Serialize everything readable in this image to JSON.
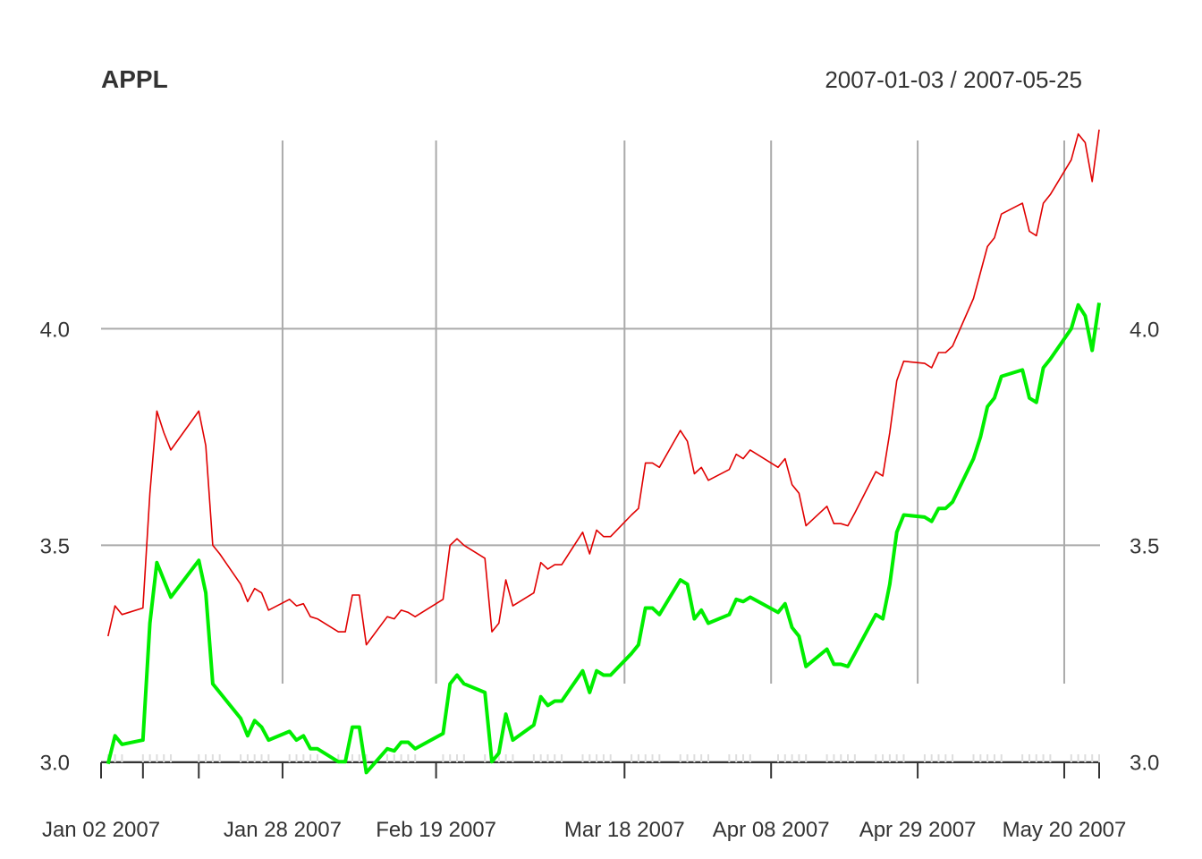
{
  "chart_data": {
    "type": "line",
    "title": "APPL",
    "date_range": "2007-01-03 / 2007-05-25",
    "ylim": [
      2.92,
      4.47
    ],
    "yticks": [
      {
        "value": 3.0,
        "label": "3.0"
      },
      {
        "value": 3.5,
        "label": "3.5"
      },
      {
        "value": 4.0,
        "label": "4.0"
      }
    ],
    "xlim": [
      "2007-01-02",
      "2007-05-25"
    ],
    "xticks": [
      {
        "date": "2007-01-02",
        "label": "Jan 02 2007"
      },
      {
        "date": "2007-01-28",
        "label": "Jan 28 2007"
      },
      {
        "date": "2007-02-19",
        "label": "Feb 19 2007"
      },
      {
        "date": "2007-03-18",
        "label": "Mar 18 2007"
      },
      {
        "date": "2007-04-08",
        "label": "Apr 08 2007"
      },
      {
        "date": "2007-04-29",
        "label": "Apr 29 2007"
      },
      {
        "date": "2007-05-20",
        "label": "May 20 2007"
      }
    ],
    "vgrid_dates": [
      "2007-01-28",
      "2007-02-19",
      "2007-03-18",
      "2007-04-08",
      "2007-04-29",
      "2007-05-20"
    ],
    "grid": true,
    "series": [
      {
        "color": "#e00000",
        "points": [
          [
            "2007-01-03",
            3.29
          ],
          [
            "2007-01-04",
            3.36
          ],
          [
            "2007-01-05",
            3.34
          ],
          [
            "2007-01-08",
            3.355
          ],
          [
            "2007-01-09",
            3.62
          ],
          [
            "2007-01-10",
            3.81
          ],
          [
            "2007-01-11",
            3.76
          ],
          [
            "2007-01-12",
            3.72
          ],
          [
            "2007-01-16",
            3.81
          ],
          [
            "2007-01-17",
            3.73
          ],
          [
            "2007-01-18",
            3.5
          ],
          [
            "2007-01-19",
            3.48
          ],
          [
            "2007-01-22",
            3.41
          ],
          [
            "2007-01-23",
            3.37
          ],
          [
            "2007-01-24",
            3.4
          ],
          [
            "2007-01-25",
            3.39
          ],
          [
            "2007-01-26",
            3.35
          ],
          [
            "2007-01-29",
            3.375
          ],
          [
            "2007-01-30",
            3.36
          ],
          [
            "2007-01-31",
            3.365
          ],
          [
            "2007-02-01",
            3.335
          ],
          [
            "2007-02-02",
            3.33
          ],
          [
            "2007-02-05",
            3.3
          ],
          [
            "2007-02-06",
            3.3
          ],
          [
            "2007-02-07",
            3.385
          ],
          [
            "2007-02-08",
            3.385
          ],
          [
            "2007-02-09",
            3.27
          ],
          [
            "2007-02-12",
            3.335
          ],
          [
            "2007-02-13",
            3.33
          ],
          [
            "2007-02-14",
            3.35
          ],
          [
            "2007-02-15",
            3.345
          ],
          [
            "2007-02-16",
            3.335
          ],
          [
            "2007-02-20",
            3.375
          ],
          [
            "2007-02-21",
            3.5
          ],
          [
            "2007-02-22",
            3.515
          ],
          [
            "2007-02-23",
            3.5
          ],
          [
            "2007-02-26",
            3.47
          ],
          [
            "2007-02-27",
            3.3
          ],
          [
            "2007-02-28",
            3.32
          ],
          [
            "2007-03-01",
            3.42
          ],
          [
            "2007-03-02",
            3.36
          ],
          [
            "2007-03-05",
            3.39
          ],
          [
            "2007-03-06",
            3.46
          ],
          [
            "2007-03-07",
            3.445
          ],
          [
            "2007-03-08",
            3.455
          ],
          [
            "2007-03-09",
            3.455
          ],
          [
            "2007-03-12",
            3.53
          ],
          [
            "2007-03-13",
            3.48
          ],
          [
            "2007-03-14",
            3.535
          ],
          [
            "2007-03-15",
            3.52
          ],
          [
            "2007-03-16",
            3.52
          ],
          [
            "2007-03-19",
            3.57
          ],
          [
            "2007-03-20",
            3.585
          ],
          [
            "2007-03-21",
            3.69
          ],
          [
            "2007-03-22",
            3.69
          ],
          [
            "2007-03-23",
            3.68
          ],
          [
            "2007-03-26",
            3.765
          ],
          [
            "2007-03-27",
            3.74
          ],
          [
            "2007-03-28",
            3.665
          ],
          [
            "2007-03-29",
            3.68
          ],
          [
            "2007-03-30",
            3.65
          ],
          [
            "2007-04-02",
            3.675
          ],
          [
            "2007-04-03",
            3.71
          ],
          [
            "2007-04-04",
            3.7
          ],
          [
            "2007-04-05",
            3.72
          ],
          [
            "2007-04-09",
            3.68
          ],
          [
            "2007-04-10",
            3.7
          ],
          [
            "2007-04-11",
            3.64
          ],
          [
            "2007-04-12",
            3.62
          ],
          [
            "2007-04-13",
            3.545
          ],
          [
            "2007-04-16",
            3.59
          ],
          [
            "2007-04-17",
            3.55
          ],
          [
            "2007-04-18",
            3.55
          ],
          [
            "2007-04-19",
            3.545
          ],
          [
            "2007-04-20",
            3.575
          ],
          [
            "2007-04-23",
            3.67
          ],
          [
            "2007-04-24",
            3.66
          ],
          [
            "2007-04-25",
            3.76
          ],
          [
            "2007-04-26",
            3.88
          ],
          [
            "2007-04-27",
            3.925
          ],
          [
            "2007-04-30",
            3.92
          ],
          [
            "2007-05-01",
            3.91
          ],
          [
            "2007-05-02",
            3.945
          ],
          [
            "2007-05-03",
            3.945
          ],
          [
            "2007-05-04",
            3.96
          ],
          [
            "2007-05-07",
            4.07
          ],
          [
            "2007-05-08",
            4.13
          ],
          [
            "2007-05-09",
            4.19
          ],
          [
            "2007-05-10",
            4.21
          ],
          [
            "2007-05-11",
            4.265
          ],
          [
            "2007-05-14",
            4.29
          ],
          [
            "2007-05-15",
            4.225
          ],
          [
            "2007-05-16",
            4.215
          ],
          [
            "2007-05-17",
            4.29
          ],
          [
            "2007-05-18",
            4.31
          ],
          [
            "2007-05-21",
            4.39
          ],
          [
            "2007-05-22",
            4.45
          ],
          [
            "2007-05-23",
            4.43
          ],
          [
            "2007-05-24",
            4.34
          ],
          [
            "2007-05-25",
            4.46
          ]
        ]
      },
      {
        "color": "#00ee00",
        "points": [
          [
            "2007-01-03",
            2.995
          ],
          [
            "2007-01-04",
            3.06
          ],
          [
            "2007-01-05",
            3.04
          ],
          [
            "2007-01-08",
            3.05
          ],
          [
            "2007-01-09",
            3.32
          ],
          [
            "2007-01-10",
            3.46
          ],
          [
            "2007-01-11",
            3.42
          ],
          [
            "2007-01-12",
            3.38
          ],
          [
            "2007-01-16",
            3.465
          ],
          [
            "2007-01-17",
            3.39
          ],
          [
            "2007-01-18",
            3.18
          ],
          [
            "2007-01-19",
            3.16
          ],
          [
            "2007-01-22",
            3.1
          ],
          [
            "2007-01-23",
            3.06
          ],
          [
            "2007-01-24",
            3.095
          ],
          [
            "2007-01-25",
            3.08
          ],
          [
            "2007-01-26",
            3.05
          ],
          [
            "2007-01-29",
            3.07
          ],
          [
            "2007-01-30",
            3.05
          ],
          [
            "2007-01-31",
            3.06
          ],
          [
            "2007-02-01",
            3.03
          ],
          [
            "2007-02-02",
            3.03
          ],
          [
            "2007-02-05",
            3.0
          ],
          [
            "2007-02-06",
            3.0
          ],
          [
            "2007-02-07",
            3.08
          ],
          [
            "2007-02-08",
            3.08
          ],
          [
            "2007-02-09",
            2.975
          ],
          [
            "2007-02-12",
            3.03
          ],
          [
            "2007-02-13",
            3.025
          ],
          [
            "2007-02-14",
            3.045
          ],
          [
            "2007-02-15",
            3.045
          ],
          [
            "2007-02-16",
            3.03
          ],
          [
            "2007-02-20",
            3.065
          ],
          [
            "2007-02-21",
            3.18
          ],
          [
            "2007-02-22",
            3.2
          ],
          [
            "2007-02-23",
            3.18
          ],
          [
            "2007-02-26",
            3.16
          ],
          [
            "2007-02-27",
            3.0
          ],
          [
            "2007-02-28",
            3.02
          ],
          [
            "2007-03-01",
            3.11
          ],
          [
            "2007-03-02",
            3.05
          ],
          [
            "2007-03-05",
            3.085
          ],
          [
            "2007-03-06",
            3.15
          ],
          [
            "2007-03-07",
            3.13
          ],
          [
            "2007-03-08",
            3.14
          ],
          [
            "2007-03-09",
            3.14
          ],
          [
            "2007-03-12",
            3.21
          ],
          [
            "2007-03-13",
            3.16
          ],
          [
            "2007-03-14",
            3.21
          ],
          [
            "2007-03-15",
            3.2
          ],
          [
            "2007-03-16",
            3.2
          ],
          [
            "2007-03-19",
            3.25
          ],
          [
            "2007-03-20",
            3.27
          ],
          [
            "2007-03-21",
            3.355
          ],
          [
            "2007-03-22",
            3.355
          ],
          [
            "2007-03-23",
            3.34
          ],
          [
            "2007-03-26",
            3.42
          ],
          [
            "2007-03-27",
            3.41
          ],
          [
            "2007-03-28",
            3.33
          ],
          [
            "2007-03-29",
            3.35
          ],
          [
            "2007-03-30",
            3.32
          ],
          [
            "2007-04-02",
            3.34
          ],
          [
            "2007-04-03",
            3.375
          ],
          [
            "2007-04-04",
            3.37
          ],
          [
            "2007-04-05",
            3.38
          ],
          [
            "2007-04-09",
            3.345
          ],
          [
            "2007-04-10",
            3.365
          ],
          [
            "2007-04-11",
            3.31
          ],
          [
            "2007-04-12",
            3.29
          ],
          [
            "2007-04-13",
            3.22
          ],
          [
            "2007-04-16",
            3.26
          ],
          [
            "2007-04-17",
            3.225
          ],
          [
            "2007-04-18",
            3.225
          ],
          [
            "2007-04-19",
            3.22
          ],
          [
            "2007-04-20",
            3.25
          ],
          [
            "2007-04-23",
            3.34
          ],
          [
            "2007-04-24",
            3.33
          ],
          [
            "2007-04-25",
            3.41
          ],
          [
            "2007-04-26",
            3.53
          ],
          [
            "2007-04-27",
            3.57
          ],
          [
            "2007-04-30",
            3.565
          ],
          [
            "2007-05-01",
            3.555
          ],
          [
            "2007-05-02",
            3.585
          ],
          [
            "2007-05-03",
            3.585
          ],
          [
            "2007-05-04",
            3.6
          ],
          [
            "2007-05-07",
            3.7
          ],
          [
            "2007-05-08",
            3.75
          ],
          [
            "2007-05-09",
            3.82
          ],
          [
            "2007-05-10",
            3.84
          ],
          [
            "2007-05-11",
            3.89
          ],
          [
            "2007-05-14",
            3.905
          ],
          [
            "2007-05-15",
            3.84
          ],
          [
            "2007-05-16",
            3.83
          ],
          [
            "2007-05-17",
            3.91
          ],
          [
            "2007-05-18",
            3.93
          ],
          [
            "2007-05-21",
            4.0
          ],
          [
            "2007-05-22",
            4.055
          ],
          [
            "2007-05-23",
            4.03
          ],
          [
            "2007-05-24",
            3.95
          ],
          [
            "2007-05-25",
            4.06
          ]
        ]
      }
    ]
  }
}
